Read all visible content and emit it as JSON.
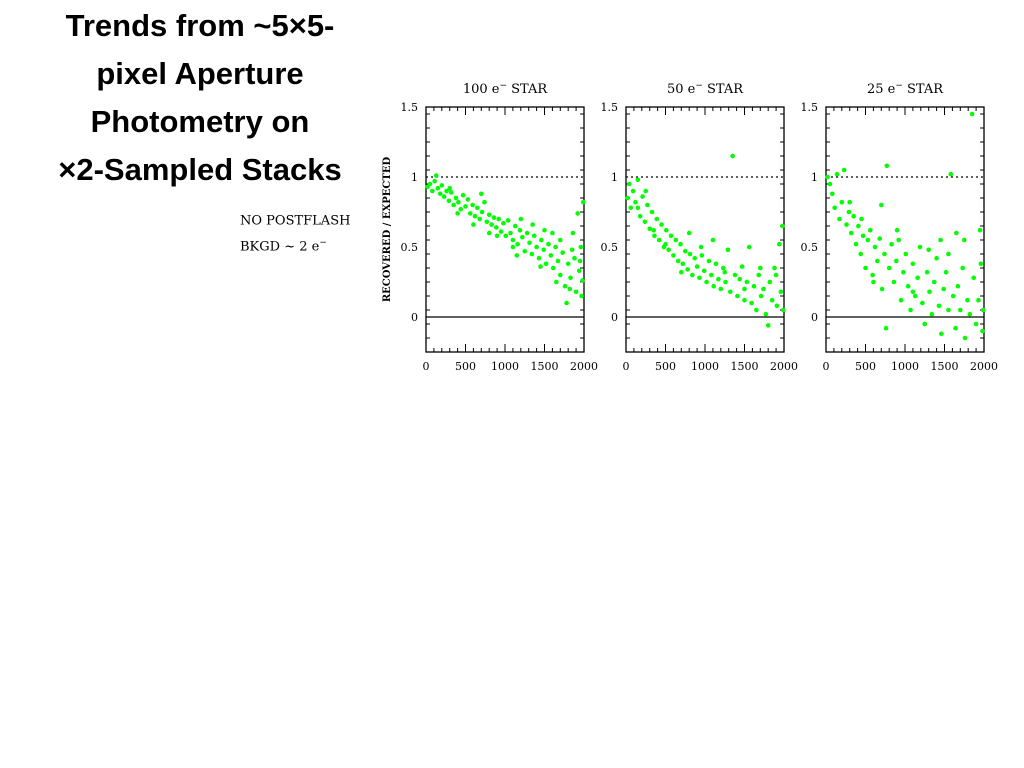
{
  "slide": {
    "title_lines": [
      "Trends from ~5×5-",
      "pixel Aperture",
      "Photometry on",
      "×2-Sampled Stacks"
    ],
    "note_lines": [
      {
        "text": "NO POSTFLASH",
        "sup": ""
      },
      {
        "text": "BKGD ~ 2 e",
        "sup": "−"
      }
    ]
  },
  "colors": {
    "points": "#00ff00",
    "axes": "#000000"
  },
  "chart_data": [
    {
      "type": "scatter",
      "title": "100 e",
      "title_sup": "−",
      "title_suffix": "STAR",
      "ylabel": "RECOVERED / EXPECTED",
      "xlabel": "",
      "xlim": [
        0,
        2000
      ],
      "ylim": [
        -0.25,
        1.5
      ],
      "x_ticks": [
        0,
        500,
        1000,
        1500,
        2000
      ],
      "y_ticks": [
        0,
        0.5,
        1,
        1.5
      ],
      "y_tick_labels": [
        "0",
        "0.5",
        "1",
        "1.5"
      ],
      "reference_lines": [
        {
          "y": 1,
          "style": "dotted"
        },
        {
          "y": 0,
          "style": "solid"
        }
      ],
      "points": [
        [
          20,
          0.93
        ],
        [
          50,
          0.95
        ],
        [
          80,
          0.9
        ],
        [
          110,
          0.97
        ],
        [
          130,
          1.01
        ],
        [
          150,
          0.92
        ],
        [
          180,
          0.88
        ],
        [
          200,
          0.94
        ],
        [
          230,
          0.86
        ],
        [
          260,
          0.9
        ],
        [
          290,
          0.83
        ],
        [
          320,
          0.89
        ],
        [
          350,
          0.8
        ],
        [
          380,
          0.85
        ],
        [
          410,
          0.82
        ],
        [
          440,
          0.77
        ],
        [
          470,
          0.87
        ],
        [
          500,
          0.79
        ],
        [
          530,
          0.84
        ],
        [
          560,
          0.74
        ],
        [
          590,
          0.8
        ],
        [
          620,
          0.72
        ],
        [
          650,
          0.78
        ],
        [
          680,
          0.7
        ],
        [
          710,
          0.75
        ],
        [
          740,
          0.82
        ],
        [
          770,
          0.68
        ],
        [
          800,
          0.73
        ],
        [
          830,
          0.66
        ],
        [
          860,
          0.71
        ],
        [
          890,
          0.64
        ],
        [
          920,
          0.7
        ],
        [
          950,
          0.61
        ],
        [
          980,
          0.67
        ],
        [
          1010,
          0.58
        ],
        [
          1040,
          0.69
        ],
        [
          1070,
          0.6
        ],
        [
          1100,
          0.55
        ],
        [
          1130,
          0.65
        ],
        [
          1160,
          0.52
        ],
        [
          1190,
          0.62
        ],
        [
          1220,
          0.57
        ],
        [
          1250,
          0.47
        ],
        [
          1280,
          0.6
        ],
        [
          1310,
          0.53
        ],
        [
          1340,
          0.45
        ],
        [
          1370,
          0.58
        ],
        [
          1400,
          0.5
        ],
        [
          1430,
          0.42
        ],
        [
          1460,
          0.55
        ],
        [
          1490,
          0.48
        ],
        [
          1520,
          0.38
        ],
        [
          1550,
          0.52
        ],
        [
          1580,
          0.44
        ],
        [
          1610,
          0.35
        ],
        [
          1640,
          0.5
        ],
        [
          1670,
          0.4
        ],
        [
          1700,
          0.3
        ],
        [
          1730,
          0.46
        ],
        [
          1760,
          0.22
        ],
        [
          1780,
          0.1
        ],
        [
          1800,
          0.38
        ],
        [
          1830,
          0.28
        ],
        [
          1860,
          0.6
        ],
        [
          1880,
          0.42
        ],
        [
          1900,
          0.18
        ],
        [
          1920,
          0.74
        ],
        [
          1940,
          0.33
        ],
        [
          1960,
          0.5
        ],
        [
          1980,
          0.26
        ],
        [
          1990,
          0.82
        ],
        [
          1970,
          0.15
        ],
        [
          1850,
          0.48
        ],
        [
          1700,
          0.55
        ],
        [
          1600,
          0.6
        ],
        [
          1450,
          0.36
        ],
        [
          1350,
          0.66
        ],
        [
          1150,
          0.44
        ],
        [
          900,
          0.58
        ],
        [
          700,
          0.88
        ],
        [
          600,
          0.66
        ],
        [
          400,
          0.74
        ],
        [
          300,
          0.92
        ],
        [
          1200,
          0.7
        ],
        [
          1500,
          0.62
        ],
        [
          1650,
          0.25
        ],
        [
          1820,
          0.2
        ],
        [
          1950,
          0.4
        ],
        [
          1100,
          0.5
        ],
        [
          800,
          0.6
        ]
      ]
    },
    {
      "type": "scatter",
      "title": "50 e",
      "title_sup": "−",
      "title_suffix": "STAR",
      "ylabel": "",
      "xlabel": "",
      "xlim": [
        0,
        2000
      ],
      "ylim": [
        -0.25,
        1.5
      ],
      "x_ticks": [
        0,
        500,
        1000,
        1500,
        2000
      ],
      "y_ticks": [
        0,
        0.5,
        1,
        1.5
      ],
      "y_tick_labels": [
        "0",
        "0.5",
        "1",
        "1.5"
      ],
      "reference_lines": [
        {
          "y": 1,
          "style": "dotted"
        },
        {
          "y": 0,
          "style": "solid"
        }
      ],
      "points": [
        [
          20,
          0.85
        ],
        [
          40,
          0.95
        ],
        [
          60,
          0.78
        ],
        [
          90,
          0.9
        ],
        [
          120,
          0.82
        ],
        [
          150,
          0.98
        ],
        [
          180,
          0.72
        ],
        [
          210,
          0.86
        ],
        [
          240,
          0.68
        ],
        [
          270,
          0.8
        ],
        [
          300,
          0.63
        ],
        [
          330,
          0.75
        ],
        [
          360,
          0.58
        ],
        [
          390,
          0.7
        ],
        [
          420,
          0.55
        ],
        [
          450,
          0.66
        ],
        [
          480,
          0.5
        ],
        [
          510,
          0.62
        ],
        [
          540,
          0.48
        ],
        [
          570,
          0.58
        ],
        [
          600,
          0.44
        ],
        [
          630,
          0.55
        ],
        [
          660,
          0.4
        ],
        [
          690,
          0.52
        ],
        [
          720,
          0.38
        ],
        [
          750,
          0.47
        ],
        [
          780,
          0.34
        ],
        [
          810,
          0.45
        ],
        [
          840,
          0.3
        ],
        [
          870,
          0.42
        ],
        [
          900,
          0.36
        ],
        [
          930,
          0.28
        ],
        [
          960,
          0.44
        ],
        [
          990,
          0.33
        ],
        [
          1020,
          0.25
        ],
        [
          1050,
          0.4
        ],
        [
          1080,
          0.3
        ],
        [
          1110,
          0.22
        ],
        [
          1140,
          0.38
        ],
        [
          1170,
          0.27
        ],
        [
          1200,
          0.2
        ],
        [
          1230,
          0.35
        ],
        [
          1260,
          0.25
        ],
        [
          1290,
          0.48
        ],
        [
          1320,
          0.18
        ],
        [
          1350,
          1.15
        ],
        [
          1380,
          0.3
        ],
        [
          1410,
          0.15
        ],
        [
          1440,
          0.27
        ],
        [
          1470,
          0.36
        ],
        [
          1500,
          0.12
        ],
        [
          1530,
          0.25
        ],
        [
          1560,
          0.5
        ],
        [
          1590,
          0.1
        ],
        [
          1620,
          0.22
        ],
        [
          1650,
          0.05
        ],
        [
          1680,
          0.3
        ],
        [
          1710,
          0.15
        ],
        [
          1740,
          0.2
        ],
        [
          1770,
          0.02
        ],
        [
          1800,
          -0.06
        ],
        [
          1820,
          0.25
        ],
        [
          1850,
          0.12
        ],
        [
          1880,
          0.35
        ],
        [
          1910,
          0.08
        ],
        [
          1940,
          0.52
        ],
        [
          1960,
          0.18
        ],
        [
          1980,
          0.65
        ],
        [
          1990,
          0.05
        ],
        [
          1100,
          0.55
        ],
        [
          800,
          0.6
        ],
        [
          500,
          0.52
        ],
        [
          700,
          0.32
        ],
        [
          950,
          0.5
        ],
        [
          1250,
          0.32
        ],
        [
          1500,
          0.2
        ],
        [
          1700,
          0.35
        ],
        [
          1900,
          0.3
        ],
        [
          350,
          0.62
        ],
        [
          250,
          0.9
        ],
        [
          150,
          0.78
        ]
      ]
    },
    {
      "type": "scatter",
      "title": "25 e",
      "title_sup": "−",
      "title_suffix": "STAR",
      "ylabel": "",
      "xlabel": "",
      "xlim": [
        0,
        2000
      ],
      "ylim": [
        -0.25,
        1.5
      ],
      "x_ticks": [
        0,
        500,
        1000,
        1500,
        2000
      ],
      "y_ticks": [
        0,
        0.5,
        1,
        1.5
      ],
      "y_tick_labels": [
        "0",
        "0.5",
        "1",
        "1.5"
      ],
      "reference_lines": [
        {
          "y": 1,
          "style": "dotted"
        },
        {
          "y": 0,
          "style": "solid"
        }
      ],
      "points": [
        [
          20,
          1.0
        ],
        [
          50,
          0.95
        ],
        [
          80,
          0.88
        ],
        [
          110,
          0.78
        ],
        [
          140,
          1.02
        ],
        [
          170,
          0.7
        ],
        [
          200,
          0.82
        ],
        [
          230,
          1.05
        ],
        [
          260,
          0.66
        ],
        [
          290,
          0.75
        ],
        [
          320,
          0.6
        ],
        [
          350,
          0.72
        ],
        [
          380,
          0.52
        ],
        [
          410,
          0.65
        ],
        [
          440,
          0.45
        ],
        [
          470,
          0.58
        ],
        [
          500,
          0.35
        ],
        [
          530,
          0.55
        ],
        [
          560,
          0.62
        ],
        [
          590,
          0.3
        ],
        [
          620,
          0.5
        ],
        [
          650,
          0.4
        ],
        [
          680,
          0.56
        ],
        [
          710,
          0.2
        ],
        [
          740,
          0.45
        ],
        [
          770,
          1.08
        ],
        [
          800,
          0.35
        ],
        [
          830,
          0.52
        ],
        [
          860,
          0.25
        ],
        [
          890,
          0.4
        ],
        [
          920,
          0.55
        ],
        [
          950,
          0.12
        ],
        [
          980,
          0.32
        ],
        [
          1010,
          0.45
        ],
        [
          1040,
          0.22
        ],
        [
          1070,
          0.05
        ],
        [
          1100,
          0.38
        ],
        [
          1130,
          0.15
        ],
        [
          1160,
          0.28
        ],
        [
          1190,
          0.5
        ],
        [
          1220,
          0.1
        ],
        [
          1250,
          -0.05
        ],
        [
          1280,
          0.32
        ],
        [
          1310,
          0.18
        ],
        [
          1340,
          0.02
        ],
        [
          1370,
          0.25
        ],
        [
          1400,
          0.42
        ],
        [
          1430,
          0.08
        ],
        [
          1460,
          -0.12
        ],
        [
          1490,
          0.2
        ],
        [
          1520,
          0.32
        ],
        [
          1550,
          0.05
        ],
        [
          1580,
          1.02
        ],
        [
          1610,
          0.15
        ],
        [
          1640,
          -0.08
        ],
        [
          1670,
          0.22
        ],
        [
          1700,
          0.05
        ],
        [
          1730,
          0.35
        ],
        [
          1760,
          -0.15
        ],
        [
          1790,
          0.12
        ],
        [
          1820,
          0.02
        ],
        [
          1850,
          1.45
        ],
        [
          1870,
          0.28
        ],
        [
          1900,
          -0.05
        ],
        [
          1930,
          0.12
        ],
        [
          1960,
          0.38
        ],
        [
          1980,
          -0.1
        ],
        [
          1990,
          0.05
        ],
        [
          760,
          -0.08
        ],
        [
          1450,
          0.55
        ],
        [
          1550,
          0.45
        ],
        [
          1650,
          0.6
        ],
        [
          1750,
          0.55
        ],
        [
          1950,
          0.62
        ],
        [
          600,
          0.25
        ],
        [
          900,
          0.62
        ],
        [
          300,
          0.82
        ],
        [
          450,
          0.7
        ],
        [
          1100,
          0.18
        ],
        [
          1300,
          0.48
        ],
        [
          700,
          0.8
        ]
      ]
    }
  ]
}
